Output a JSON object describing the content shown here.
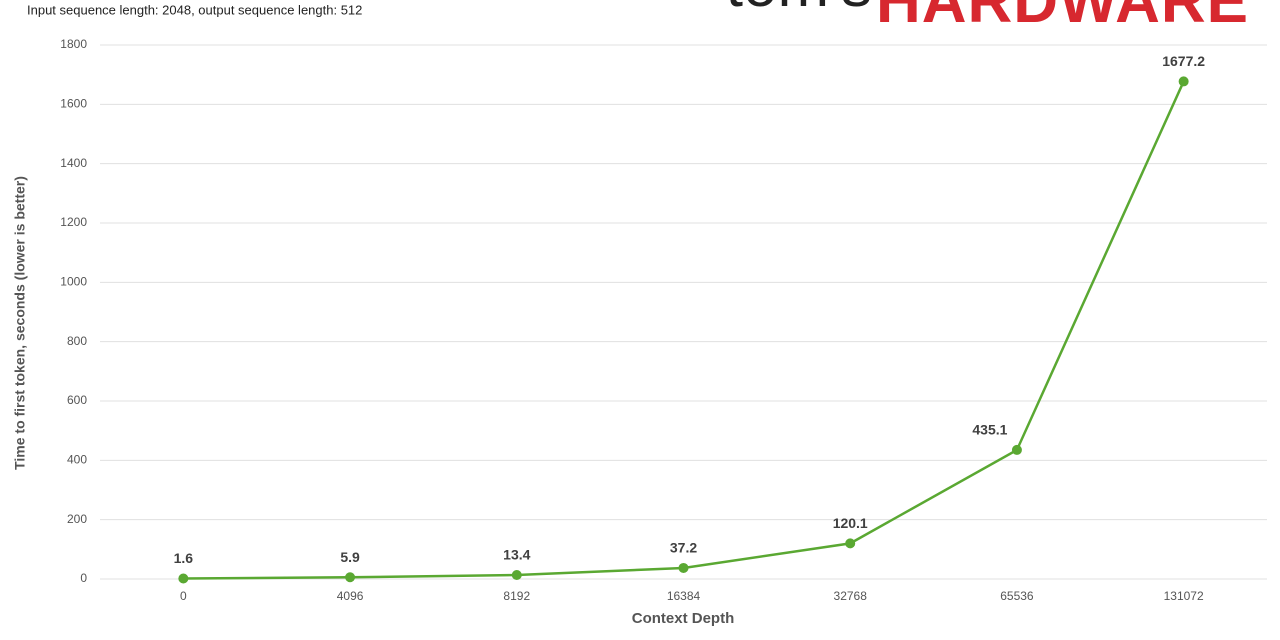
{
  "chart_data": {
    "type": "line",
    "subtitle": "Input sequence length: 2048, output sequence length: 512",
    "logo": [
      "tom's",
      "HARDWARE"
    ],
    "x_label": "Context Depth",
    "y_label": "Time to first token, seconds (lower is better)",
    "categories": [
      "0",
      "4096",
      "8192",
      "16384",
      "32768",
      "65536",
      "131072"
    ],
    "series": [
      {
        "name": "Time to first token",
        "color": "#5aa832",
        "values": [
          1.6,
          5.9,
          13.4,
          37.2,
          120.1,
          435.1,
          1677.2
        ]
      }
    ],
    "ylim": [
      0,
      1800
    ],
    "yticks": [
      0,
      200,
      400,
      600,
      800,
      1000,
      1200,
      1400,
      1600,
      1800
    ],
    "grid": true
  }
}
